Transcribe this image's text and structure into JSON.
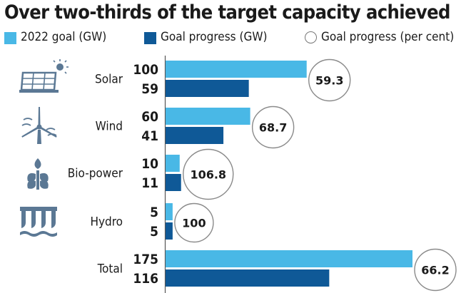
{
  "title": "Over two-thirds of the target capacity achieved",
  "legend": {
    "goal": "2022 goal (GW)",
    "progress": "Goal progress (GW)",
    "percent": "Goal progress (per cent)"
  },
  "colors": {
    "goal": "#49b8e6",
    "progress": "#0f5997",
    "icon": "#5b7894",
    "circle_border": "#8a8a8a"
  },
  "icons": [
    "solar-panel-icon",
    "wind-turbine-icon",
    "bio-power-icon",
    "hydro-dam-icon"
  ],
  "chart_data": {
    "type": "bar",
    "orientation": "horizontal",
    "categories": [
      "Solar",
      "Wind",
      "Bio-power",
      "Hydro",
      "Total"
    ],
    "series": [
      {
        "name": "2022 goal (GW)",
        "values": [
          100,
          60,
          10,
          5,
          175
        ]
      },
      {
        "name": "Goal progress (GW)",
        "values": [
          59,
          41,
          11,
          5,
          116
        ]
      },
      {
        "name": "Goal progress (per cent)",
        "values": [
          59.3,
          68.7,
          106.8,
          100,
          66.2
        ],
        "labels": [
          "59.3",
          "68.7",
          "106.8",
          "100",
          "66.2"
        ]
      }
    ],
    "value_labels": {
      "goal": [
        "100",
        "60",
        "10",
        "5",
        "175"
      ],
      "progress": [
        "59",
        "41",
        "11",
        "5",
        "116"
      ]
    },
    "xlim": [
      0,
      175
    ]
  }
}
